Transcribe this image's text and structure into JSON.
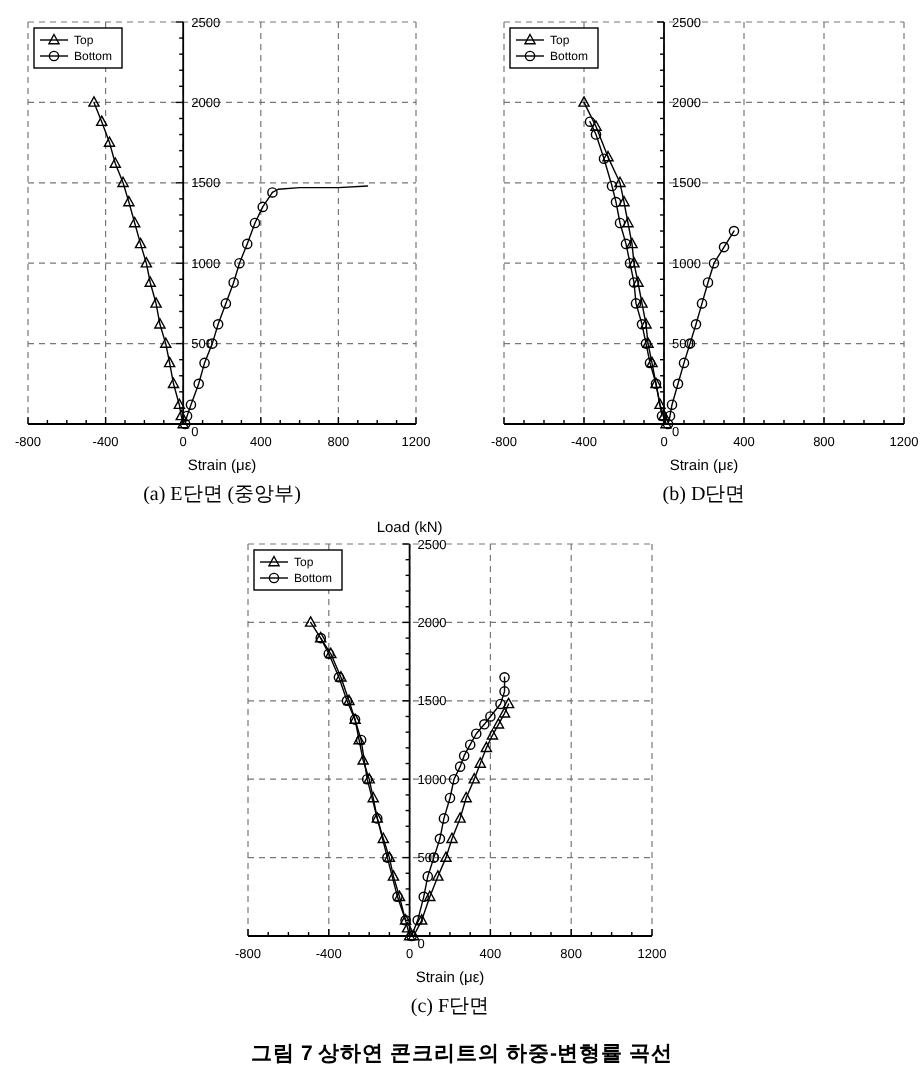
{
  "chart_data": [
    {
      "type": "line",
      "title": "(a) E단면 (중앙부)",
      "xlabel": "Strain (με)",
      "xlim": [
        -800,
        1200
      ],
      "ylim": [
        0,
        2500
      ],
      "grid": true,
      "legend": "top left",
      "xticks": [
        -800,
        {
          "value": -700,
          "label": null
        },
        {
          "value": -600,
          "label": null
        },
        {
          "value": -500,
          "label": null
        },
        -400,
        {
          "value": -300,
          "label": null
        },
        {
          "value": -200,
          "label": null
        },
        {
          "value": -100,
          "label": null
        },
        0,
        {
          "value": 100,
          "label": null
        },
        {
          "value": 200,
          "label": null
        },
        {
          "value": 300,
          "label": null
        },
        400,
        {
          "value": 500,
          "label": null
        },
        {
          "value": 600,
          "label": null
        },
        {
          "value": 700,
          "label": null
        },
        800,
        {
          "value": 900,
          "label": null
        },
        {
          "value": 1000,
          "label": null
        },
        {
          "value": 1100,
          "label": null
        },
        1200
      ],
      "yticks": [
        0,
        {
          "value": 100,
          "label": null
        },
        {
          "value": 200,
          "label": null
        },
        {
          "value": 300,
          "label": null
        },
        {
          "value": 400,
          "label": null
        },
        500,
        {
          "value": 600,
          "label": null
        },
        {
          "value": 700,
          "label": null
        },
        {
          "value": 800,
          "label": null
        },
        {
          "value": 900,
          "label": null
        },
        1000,
        {
          "value": 1100,
          "label": null
        },
        {
          "value": 1200,
          "label": null
        },
        {
          "value": 1300,
          "label": null
        },
        {
          "value": 1400,
          "label": null
        },
        1500,
        {
          "value": 1600,
          "label": null
        },
        {
          "value": 1700,
          "label": null
        },
        {
          "value": 1800,
          "label": null
        },
        {
          "value": 1900,
          "label": null
        },
        2000,
        {
          "value": 2100,
          "label": null
        },
        {
          "value": 2200,
          "label": null
        },
        {
          "value": 2300,
          "label": null
        },
        {
          "value": 2400,
          "label": null
        },
        2500
      ],
      "series": [
        {
          "name": "Top",
          "color": "#000000",
          "marker": "triangle",
          "x": [
            0,
            -10,
            -20,
            -50,
            -70,
            -90,
            -120,
            -140,
            -170,
            -190,
            -220,
            -250,
            -280,
            -310,
            -350,
            -380,
            -420,
            -460
          ],
          "values": [
            0,
            50,
            120,
            250,
            380,
            500,
            620,
            750,
            880,
            1000,
            1120,
            1250,
            1380,
            1500,
            1620,
            1750,
            1880,
            2000
          ]
        },
        {
          "name": "Bottom",
          "color": "#000000",
          "marker": "circle",
          "x": [
            10,
            20,
            40,
            80,
            110,
            150,
            180,
            220,
            260,
            290,
            330,
            370,
            410,
            460
          ],
          "values": [
            0,
            50,
            120,
            250,
            380,
            500,
            620,
            750,
            880,
            1000,
            1120,
            1250,
            1350,
            1440
          ]
        },
        {
          "color": "#000000",
          "marker": "none",
          "x": [
            460,
            490,
            600,
            800,
            950
          ],
          "values": [
            1440,
            1460,
            1470,
            1470,
            1480
          ]
        }
      ]
    },
    {
      "type": "line",
      "title": "(b) D단면",
      "xlabel": "Strain (με)",
      "xlim": [
        -800,
        1200
      ],
      "ylim": [
        0,
        2500
      ],
      "grid": true,
      "legend": "top left",
      "xticks": [
        -800,
        {
          "value": -700,
          "label": null
        },
        {
          "value": -600,
          "label": null
        },
        {
          "value": -500,
          "label": null
        },
        -400,
        {
          "value": -300,
          "label": null
        },
        {
          "value": -200,
          "label": null
        },
        {
          "value": -100,
          "label": null
        },
        0,
        {
          "value": 100,
          "label": null
        },
        {
          "value": 200,
          "label": null
        },
        {
          "value": 300,
          "label": null
        },
        400,
        {
          "value": 500,
          "label": null
        },
        {
          "value": 600,
          "label": null
        },
        {
          "value": 700,
          "label": null
        },
        800,
        {
          "value": 900,
          "label": null
        },
        {
          "value": 1000,
          "label": null
        },
        {
          "value": 1100,
          "label": null
        },
        1200
      ],
      "yticks": [
        0,
        {
          "value": 100,
          "label": null
        },
        {
          "value": 200,
          "label": null
        },
        {
          "value": 300,
          "label": null
        },
        {
          "value": 400,
          "label": null
        },
        500,
        {
          "value": 600,
          "label": null
        },
        {
          "value": 700,
          "label": null
        },
        {
          "value": 800,
          "label": null
        },
        {
          "value": 900,
          "label": null
        },
        1000,
        {
          "value": 1100,
          "label": null
        },
        {
          "value": 1200,
          "label": null
        },
        {
          "value": 1300,
          "label": null
        },
        {
          "value": 1400,
          "label": null
        },
        1500,
        {
          "value": 1600,
          "label": null
        },
        {
          "value": 1700,
          "label": null
        },
        {
          "value": 1800,
          "label": null
        },
        {
          "value": 1900,
          "label": null
        },
        2000,
        {
          "value": 2100,
          "label": null
        },
        {
          "value": 2200,
          "label": null
        },
        {
          "value": 2300,
          "label": null
        },
        {
          "value": 2400,
          "label": null
        },
        2500
      ],
      "series": [
        {
          "color": "#000000",
          "marker": "circle",
          "x": [
            -10,
            -40,
            -70,
            -90,
            -110,
            -140,
            -150,
            -170,
            -190,
            -220,
            -240,
            -260,
            -300,
            -340,
            -370
          ],
          "values": [
            50,
            250,
            380,
            500,
            620,
            750,
            880,
            1000,
            1120,
            1250,
            1380,
            1480,
            1650,
            1800,
            1880
          ]
        },
        {
          "name": "Top",
          "color": "#000000",
          "marker": "triangle",
          "x": [
            10,
            0,
            -20,
            -40,
            -60,
            -80,
            -90,
            -110,
            -130,
            -150,
            -160,
            -180,
            -200,
            -220,
            -280,
            -340,
            -400
          ],
          "values": [
            0,
            50,
            120,
            250,
            380,
            500,
            620,
            750,
            880,
            1000,
            1120,
            1250,
            1380,
            1500,
            1660,
            1850,
            2000
          ]
        },
        {
          "name": "Bottom",
          "color": "#000000",
          "marker": "circle",
          "x": [
            20,
            30,
            40,
            70,
            100,
            130,
            160,
            190,
            220,
            250,
            300,
            350
          ],
          "values": [
            0,
            50,
            120,
            250,
            380,
            500,
            620,
            750,
            880,
            1000,
            1100,
            1200
          ]
        }
      ]
    },
    {
      "type": "line",
      "title": "(c) F단면",
      "xlabel": "Strain (με)",
      "ylabel": "Load (kN)",
      "xlim": [
        -800,
        1200
      ],
      "ylim": [
        0,
        2500
      ],
      "grid": true,
      "legend": "top left",
      "xticks": [
        -800,
        {
          "value": -700,
          "label": null
        },
        {
          "value": -600,
          "label": null
        },
        {
          "value": -500,
          "label": null
        },
        -400,
        {
          "value": -300,
          "label": null
        },
        {
          "value": -200,
          "label": null
        },
        {
          "value": -100,
          "label": null
        },
        0,
        {
          "value": 100,
          "label": null
        },
        {
          "value": 200,
          "label": null
        },
        {
          "value": 300,
          "label": null
        },
        400,
        {
          "value": 500,
          "label": null
        },
        {
          "value": 600,
          "label": null
        },
        {
          "value": 700,
          "label": null
        },
        800,
        {
          "value": 900,
          "label": null
        },
        {
          "value": 1000,
          "label": null
        },
        {
          "value": 1100,
          "label": null
        },
        1200
      ],
      "yticks": [
        0,
        {
          "value": 100,
          "label": null
        },
        {
          "value": 200,
          "label": null
        },
        {
          "value": 300,
          "label": null
        },
        {
          "value": 400,
          "label": null
        },
        500,
        {
          "value": 600,
          "label": null
        },
        {
          "value": 700,
          "label": null
        },
        {
          "value": 800,
          "label": null
        },
        {
          "value": 900,
          "label": null
        },
        1000,
        {
          "value": 1100,
          "label": null
        },
        {
          "value": 1200,
          "label": null
        },
        {
          "value": 1300,
          "label": null
        },
        {
          "value": 1400,
          "label": null
        },
        1500,
        {
          "value": 1600,
          "label": null
        },
        {
          "value": 1700,
          "label": null
        },
        {
          "value": 1800,
          "label": null
        },
        {
          "value": 1900,
          "label": null
        },
        2000,
        {
          "value": 2100,
          "label": null
        },
        {
          "value": 2200,
          "label": null
        },
        {
          "value": 2300,
          "label": null
        },
        {
          "value": 2400,
          "label": null
        },
        2500
      ],
      "annotations": [
        "그림 7 상하연 콘크리트의 하중-변형률 곡선"
      ],
      "series": [
        {
          "color": "#000000",
          "marker": "circle",
          "x": [
            -20,
            -60,
            -110,
            -160,
            -210,
            -240,
            -270,
            -310,
            -350,
            -400,
            -440
          ],
          "values": [
            100,
            250,
            500,
            750,
            1000,
            1250,
            1380,
            1500,
            1650,
            1800,
            1900
          ]
        },
        {
          "name": "Top",
          "color": "#000000",
          "marker": "triangle",
          "x": [
            0,
            -10,
            -20,
            -50,
            -80,
            -100,
            -130,
            -160,
            -180,
            -200,
            -230,
            -250,
            -270,
            -300,
            -340,
            -390,
            -440,
            -490
          ],
          "values": [
            0,
            50,
            100,
            250,
            380,
            500,
            620,
            750,
            880,
            1000,
            1120,
            1250,
            1380,
            1500,
            1650,
            1800,
            1900,
            2000
          ]
        },
        {
          "name": "Bottom",
          "color": "#000000",
          "marker": "circle",
          "x": [
            10,
            40,
            70,
            90,
            120,
            150,
            170,
            200,
            220,
            250,
            270,
            300,
            330,
            370,
            400,
            450,
            470,
            470
          ],
          "values": [
            0,
            100,
            250,
            380,
            500,
            620,
            750,
            880,
            1000,
            1080,
            1150,
            1220,
            1290,
            1350,
            1400,
            1480,
            1560,
            1650
          ]
        },
        {
          "color": "#000000",
          "marker": "triangle",
          "x": [
            20,
            60,
            100,
            140,
            180,
            210,
            250,
            280,
            320,
            350,
            380,
            410,
            440,
            470,
            490
          ],
          "values": [
            0,
            100,
            250,
            380,
            500,
            620,
            750,
            880,
            1000,
            1100,
            1200,
            1280,
            1350,
            1420,
            1480
          ]
        }
      ]
    }
  ]
}
